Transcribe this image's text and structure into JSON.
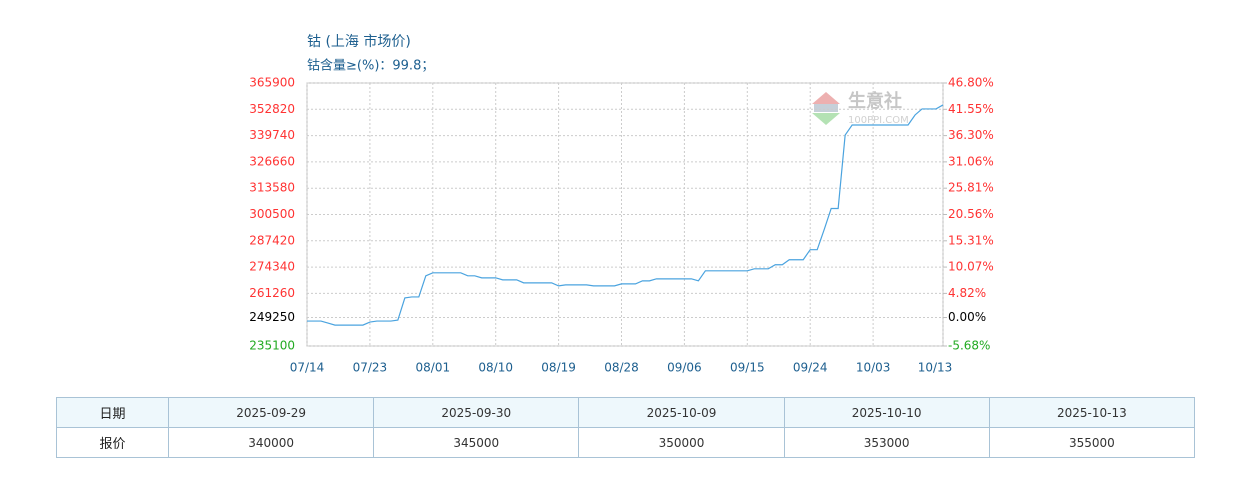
{
  "chart_data": {
    "type": "line",
    "title": "钴 (上海 市场价)",
    "subtitle": "钴含量≥(%)：99.8；",
    "watermark": {
      "name": "生意社",
      "site": "100PPI.COM"
    },
    "categories": [
      "07/14",
      null,
      null,
      null,
      null,
      null,
      null,
      null,
      null,
      "07/23",
      null,
      null,
      null,
      null,
      null,
      null,
      null,
      null,
      "08/01",
      null,
      null,
      null,
      null,
      null,
      null,
      null,
      null,
      "08/10",
      null,
      null,
      null,
      null,
      null,
      null,
      null,
      null,
      "08/19",
      null,
      null,
      null,
      null,
      null,
      null,
      null,
      null,
      "08/28",
      null,
      null,
      null,
      null,
      null,
      null,
      null,
      null,
      "09/06",
      null,
      null,
      null,
      null,
      null,
      null,
      null,
      null,
      "09/15",
      null,
      null,
      null,
      null,
      null,
      null,
      null,
      null,
      "09/24",
      null,
      null,
      null,
      null,
      null,
      null,
      null,
      null,
      "10/03",
      null,
      null,
      null,
      null,
      null,
      null,
      null,
      null,
      null,
      "10/13"
    ],
    "series": [
      {
        "name": "钴",
        "color": "#4aa3df",
        "values": [
          247500,
          247500,
          247500,
          246500,
          245500,
          245500,
          245500,
          245500,
          245500,
          247000,
          247500,
          247500,
          247500,
          248000,
          259000,
          259500,
          259500,
          270000,
          271500,
          271500,
          271500,
          271500,
          271500,
          270000,
          270000,
          269000,
          269000,
          269000,
          268000,
          268000,
          268000,
          266500,
          266500,
          266500,
          266500,
          266500,
          265000,
          265500,
          265500,
          265500,
          265500,
          265000,
          265000,
          265000,
          265000,
          266000,
          266000,
          266000,
          267500,
          267500,
          268500,
          268500,
          268500,
          268500,
          268500,
          268500,
          267500,
          272500,
          272500,
          272500,
          272500,
          272500,
          272500,
          272500,
          273500,
          273500,
          273500,
          275500,
          275500,
          278000,
          278000,
          278000,
          283000,
          283000,
          293000,
          303500,
          303500,
          340000,
          345000,
          345000,
          345000,
          345000,
          345000,
          345000,
          345000,
          345000,
          345000,
          350000,
          353000,
          353000,
          353000,
          355000
        ]
      }
    ],
    "ylim": [
      235100,
      365900
    ],
    "yticks": [
      365900,
      352820,
      339740,
      326660,
      313580,
      300500,
      287420,
      274340,
      261260,
      249250,
      235100
    ],
    "y2lim": [
      -5.68,
      46.8
    ],
    "y2ticks": [
      {
        "value": 46.8,
        "label": "46.80%"
      },
      {
        "value": 41.55,
        "label": "41.55%"
      },
      {
        "value": 36.3,
        "label": "36.30%"
      },
      {
        "value": 31.06,
        "label": "31.06%"
      },
      {
        "value": 25.81,
        "label": "25.81%"
      },
      {
        "value": 20.56,
        "label": "20.56%"
      },
      {
        "value": 15.31,
        "label": "15.31%"
      },
      {
        "value": 10.07,
        "label": "10.07%"
      },
      {
        "value": 4.82,
        "label": "4.82%"
      },
      {
        "value": 0,
        "label": "0.00%"
      },
      {
        "value": -5.68,
        "label": "-5.68%"
      }
    ],
    "grid": true
  },
  "table": {
    "rows": [
      [
        "日期",
        "2025-09-29",
        "2025-09-30",
        "2025-10-09",
        "2025-10-10",
        "2025-10-13"
      ],
      [
        "报价",
        340000,
        345000,
        350000,
        353000,
        355000
      ]
    ]
  }
}
